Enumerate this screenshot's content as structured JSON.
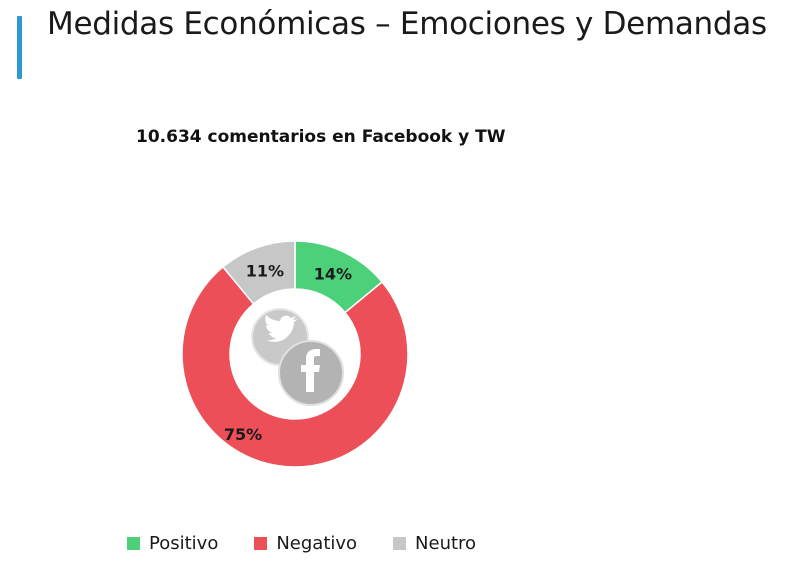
{
  "header": {
    "title": "Medidas Económicas – Emociones y Demandas"
  },
  "colors": {
    "accent": "#2b9ad0"
  },
  "chart_data": {
    "type": "pie",
    "style": "donut",
    "title": "10.634 comentarios en Facebook y TW",
    "slices": [
      {
        "label": "Positivo",
        "value": 14,
        "display": "14%",
        "color": "#4cd07a"
      },
      {
        "label": "Negativo",
        "value": 75,
        "display": "75%",
        "color": "#ed4f58"
      },
      {
        "label": "Neutro",
        "value": 11,
        "display": "11%",
        "color": "#c7c7c7"
      }
    ],
    "center_icons": [
      "twitter-icon",
      "facebook-icon"
    ],
    "legend_position": "bottom"
  }
}
